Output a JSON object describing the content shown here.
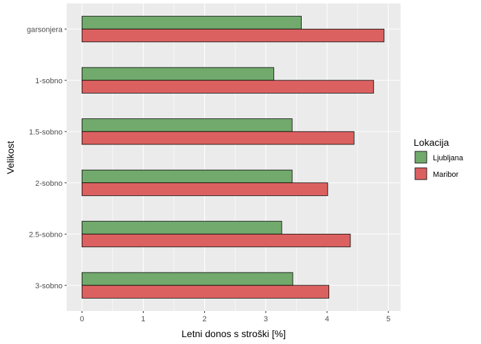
{
  "chart_data": {
    "type": "bar",
    "orientation": "horizontal",
    "categories": [
      "garsonjera",
      "1-sobno",
      "1.5-sobno",
      "2-sobno",
      "2.5-sobno",
      "3-sobno"
    ],
    "series": [
      {
        "name": "Ljubljana",
        "color": "#71aa6c",
        "values": [
          3.58,
          3.13,
          3.43,
          3.43,
          3.26,
          3.44
        ]
      },
      {
        "name": "Maribor",
        "color": "#db6160",
        "values": [
          4.93,
          4.76,
          4.44,
          4.01,
          4.38,
          4.03
        ]
      }
    ],
    "xlabel": "Letni donos s stroški [%]",
    "ylabel": "Velikost",
    "xlim": [
      -0.25,
      5.2
    ],
    "xticks": [
      "0",
      "1",
      "2",
      "3",
      "4",
      "5"
    ],
    "grid": true,
    "legend": {
      "title": "Lokacija",
      "position": "right"
    },
    "panel_background": "#ebebeb",
    "grid_color": "#ffffff"
  }
}
